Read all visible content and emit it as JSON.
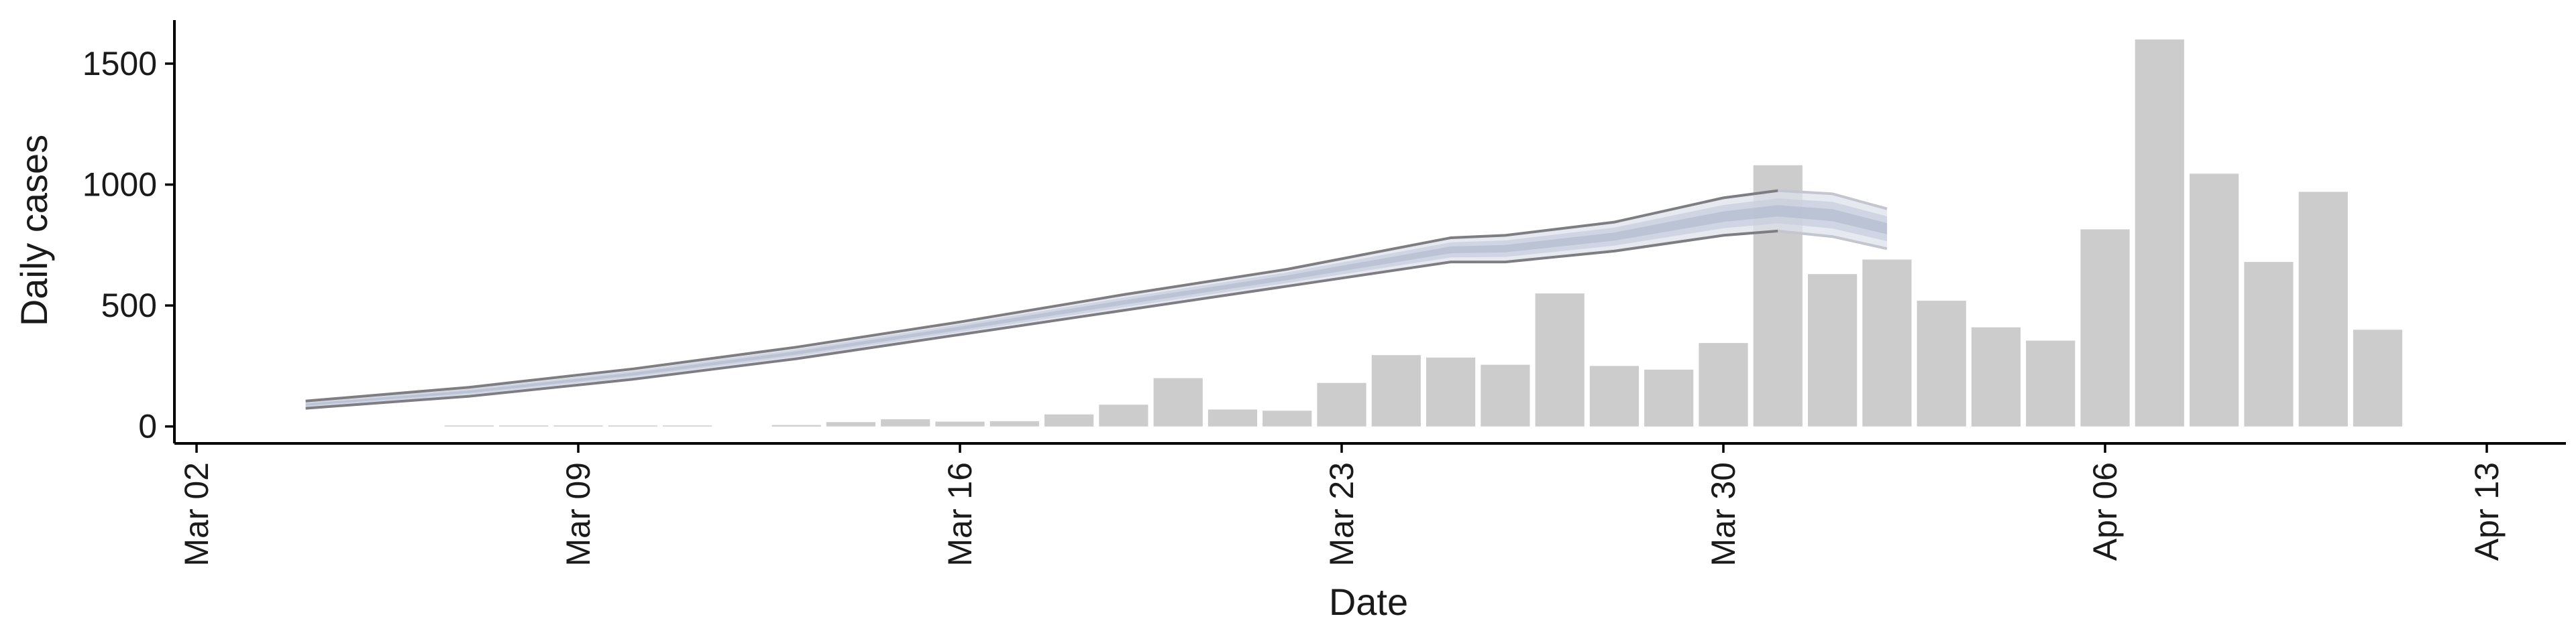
{
  "chart_data": {
    "type": "bar",
    "xlabel": "Date",
    "ylabel": "Daily cases",
    "x_axis": {
      "type": "date",
      "range": [
        "2020-03-02",
        "2020-04-13"
      ],
      "ticks": [
        {
          "date": "2020-03-02",
          "label": "Mar 02"
        },
        {
          "date": "2020-03-09",
          "label": "Mar 09"
        },
        {
          "date": "2020-03-16",
          "label": "Mar 16"
        },
        {
          "date": "2020-03-23",
          "label": "Mar 23"
        },
        {
          "date": "2020-03-30",
          "label": "Mar 30"
        },
        {
          "date": "2020-04-06",
          "label": "Apr 06"
        },
        {
          "date": "2020-04-13",
          "label": "Apr 13"
        }
      ]
    },
    "y_axis": {
      "range": [
        -70,
        1680
      ],
      "ticks": [
        0,
        500,
        1000,
        1500
      ]
    },
    "grid": false,
    "colors": {
      "bars": "#cccccc",
      "ribbon_outer": "#dde1ea",
      "ribbon_inner": "#c9d0de",
      "ribbon_center": "#b7c0d1",
      "ribbon_bound": "#7d7d82",
      "projection_bound": "#c3c6cf",
      "axis": "#000000"
    },
    "bars": [
      {
        "date": "2020-03-07",
        "value": 2
      },
      {
        "date": "2020-03-08",
        "value": 2
      },
      {
        "date": "2020-03-09",
        "value": 3
      },
      {
        "date": "2020-03-10",
        "value": 4
      },
      {
        "date": "2020-03-11",
        "value": 4
      },
      {
        "date": "2020-03-13",
        "value": 6
      },
      {
        "date": "2020-03-14",
        "value": 18
      },
      {
        "date": "2020-03-15",
        "value": 30
      },
      {
        "date": "2020-03-16",
        "value": 20
      },
      {
        "date": "2020-03-17",
        "value": 22
      },
      {
        "date": "2020-03-18",
        "value": 50
      },
      {
        "date": "2020-03-19",
        "value": 90
      },
      {
        "date": "2020-03-20",
        "value": 200
      },
      {
        "date": "2020-03-21",
        "value": 70
      },
      {
        "date": "2020-03-22",
        "value": 65
      },
      {
        "date": "2020-03-23",
        "value": 180
      },
      {
        "date": "2020-03-24",
        "value": 295
      },
      {
        "date": "2020-03-25",
        "value": 285
      },
      {
        "date": "2020-03-26",
        "value": 255
      },
      {
        "date": "2020-03-27",
        "value": 550
      },
      {
        "date": "2020-03-28",
        "value": 250
      },
      {
        "date": "2020-03-29",
        "value": 235
      },
      {
        "date": "2020-03-30",
        "value": 345
      },
      {
        "date": "2020-03-31",
        "value": 1080
      },
      {
        "date": "2020-04-01",
        "value": 630
      },
      {
        "date": "2020-04-02",
        "value": 690
      },
      {
        "date": "2020-04-03",
        "value": 520
      },
      {
        "date": "2020-04-04",
        "value": 410
      },
      {
        "date": "2020-04-05",
        "value": 355
      },
      {
        "date": "2020-04-06",
        "value": 815
      },
      {
        "date": "2020-04-07",
        "value": 1600
      },
      {
        "date": "2020-04-08",
        "value": 1045
      },
      {
        "date": "2020-04-09",
        "value": 680
      },
      {
        "date": "2020-04-10",
        "value": 970
      },
      {
        "date": "2020-04-11",
        "value": 400
      }
    ],
    "estimate_band": [
      {
        "date": "2020-03-04",
        "lower": 75,
        "upper": 105
      },
      {
        "date": "2020-03-07",
        "lower": 125,
        "upper": 162
      },
      {
        "date": "2020-03-10",
        "lower": 195,
        "upper": 238
      },
      {
        "date": "2020-03-13",
        "lower": 280,
        "upper": 328
      },
      {
        "date": "2020-03-16",
        "lower": 380,
        "upper": 432
      },
      {
        "date": "2020-03-19",
        "lower": 480,
        "upper": 545
      },
      {
        "date": "2020-03-22",
        "lower": 580,
        "upper": 650
      },
      {
        "date": "2020-03-25",
        "lower": 680,
        "upper": 780
      },
      {
        "date": "2020-03-26",
        "lower": 680,
        "upper": 790
      },
      {
        "date": "2020-03-28",
        "lower": 725,
        "upper": 845
      },
      {
        "date": "2020-03-30",
        "lower": 790,
        "upper": 945
      },
      {
        "date": "2020-03-31",
        "lower": 808,
        "upper": 975
      },
      {
        "date": "2020-04-01",
        "lower": 785,
        "upper": 962
      },
      {
        "date": "2020-04-02",
        "lower": 735,
        "upper": 900
      }
    ],
    "projection_start_date": "2020-03-31"
  }
}
